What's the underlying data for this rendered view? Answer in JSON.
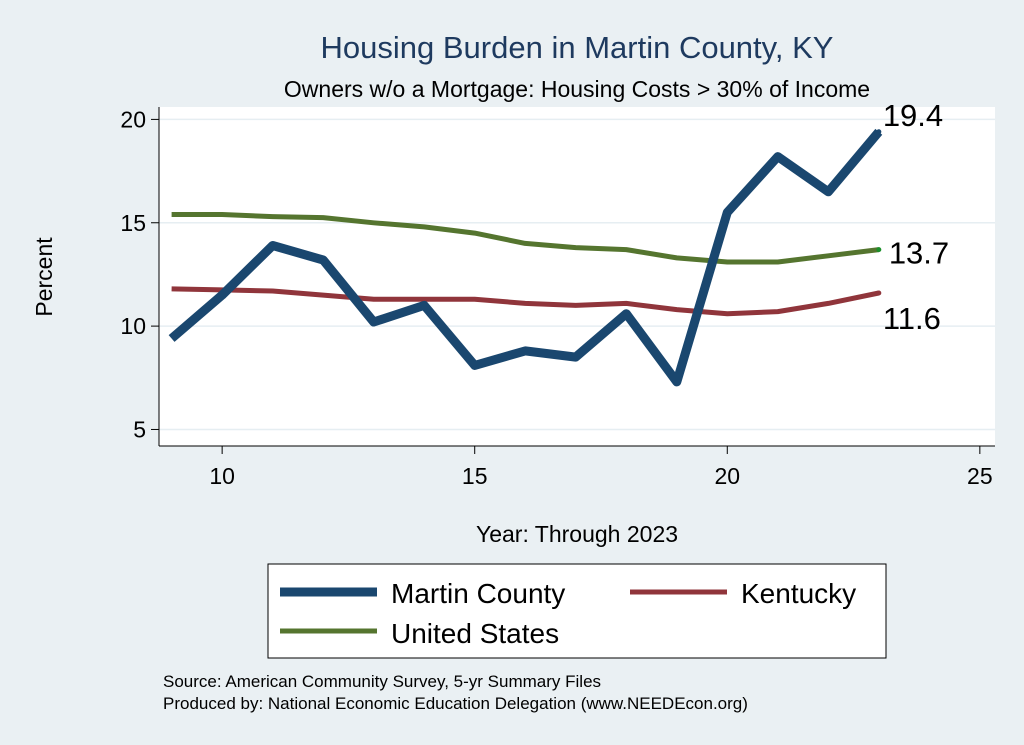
{
  "chart_data": {
    "type": "line",
    "title": "Housing Burden in Martin County, KY",
    "subtitle": "Owners w/o a Mortgage: Housing Costs > 30% of Income",
    "xlabel": "Year: Through 2023",
    "ylabel": "Percent",
    "xlim": [
      8.75,
      25.3
    ],
    "ylim": [
      4.2,
      20.6
    ],
    "x_ticks": [
      10,
      15,
      20,
      25
    ],
    "y_ticks": [
      5,
      10,
      15,
      20
    ],
    "grid": true,
    "legend_position": "bottom",
    "series": [
      {
        "name": "Martin County",
        "color": "#1a476f",
        "x": [
          9,
          10,
          11,
          12,
          13,
          14,
          15,
          16,
          17,
          18,
          19,
          20,
          21,
          22,
          23
        ],
        "values": [
          9.4,
          11.5,
          13.9,
          13.2,
          10.2,
          11.0,
          8.1,
          8.8,
          8.5,
          10.6,
          7.3,
          15.5,
          18.2,
          16.5,
          19.4
        ],
        "end_label": "19.4"
      },
      {
        "name": "Kentucky",
        "color": "#90353b",
        "x": [
          9,
          10,
          11,
          12,
          13,
          14,
          15,
          16,
          17,
          18,
          19,
          20,
          21,
          22,
          23
        ],
        "values": [
          11.8,
          11.75,
          11.7,
          11.5,
          11.3,
          11.3,
          11.3,
          11.1,
          11.0,
          11.1,
          10.8,
          10.6,
          10.7,
          11.1,
          11.6
        ],
        "end_label": "11.6"
      },
      {
        "name": "United States",
        "color": "#55752f",
        "x": [
          9,
          10,
          11,
          12,
          13,
          14,
          15,
          16,
          17,
          18,
          19,
          20,
          21,
          22,
          23
        ],
        "values": [
          15.4,
          15.4,
          15.3,
          15.25,
          15.0,
          14.8,
          14.5,
          14.0,
          13.8,
          13.7,
          13.3,
          13.1,
          13.1,
          13.4,
          13.7
        ],
        "end_label": "13.7"
      }
    ],
    "notes": [
      "Source: American Community Survey, 5-yr Summary Files",
      "Produced by: National Economic Education Delegation (www.NEEDEcon.org)"
    ]
  }
}
